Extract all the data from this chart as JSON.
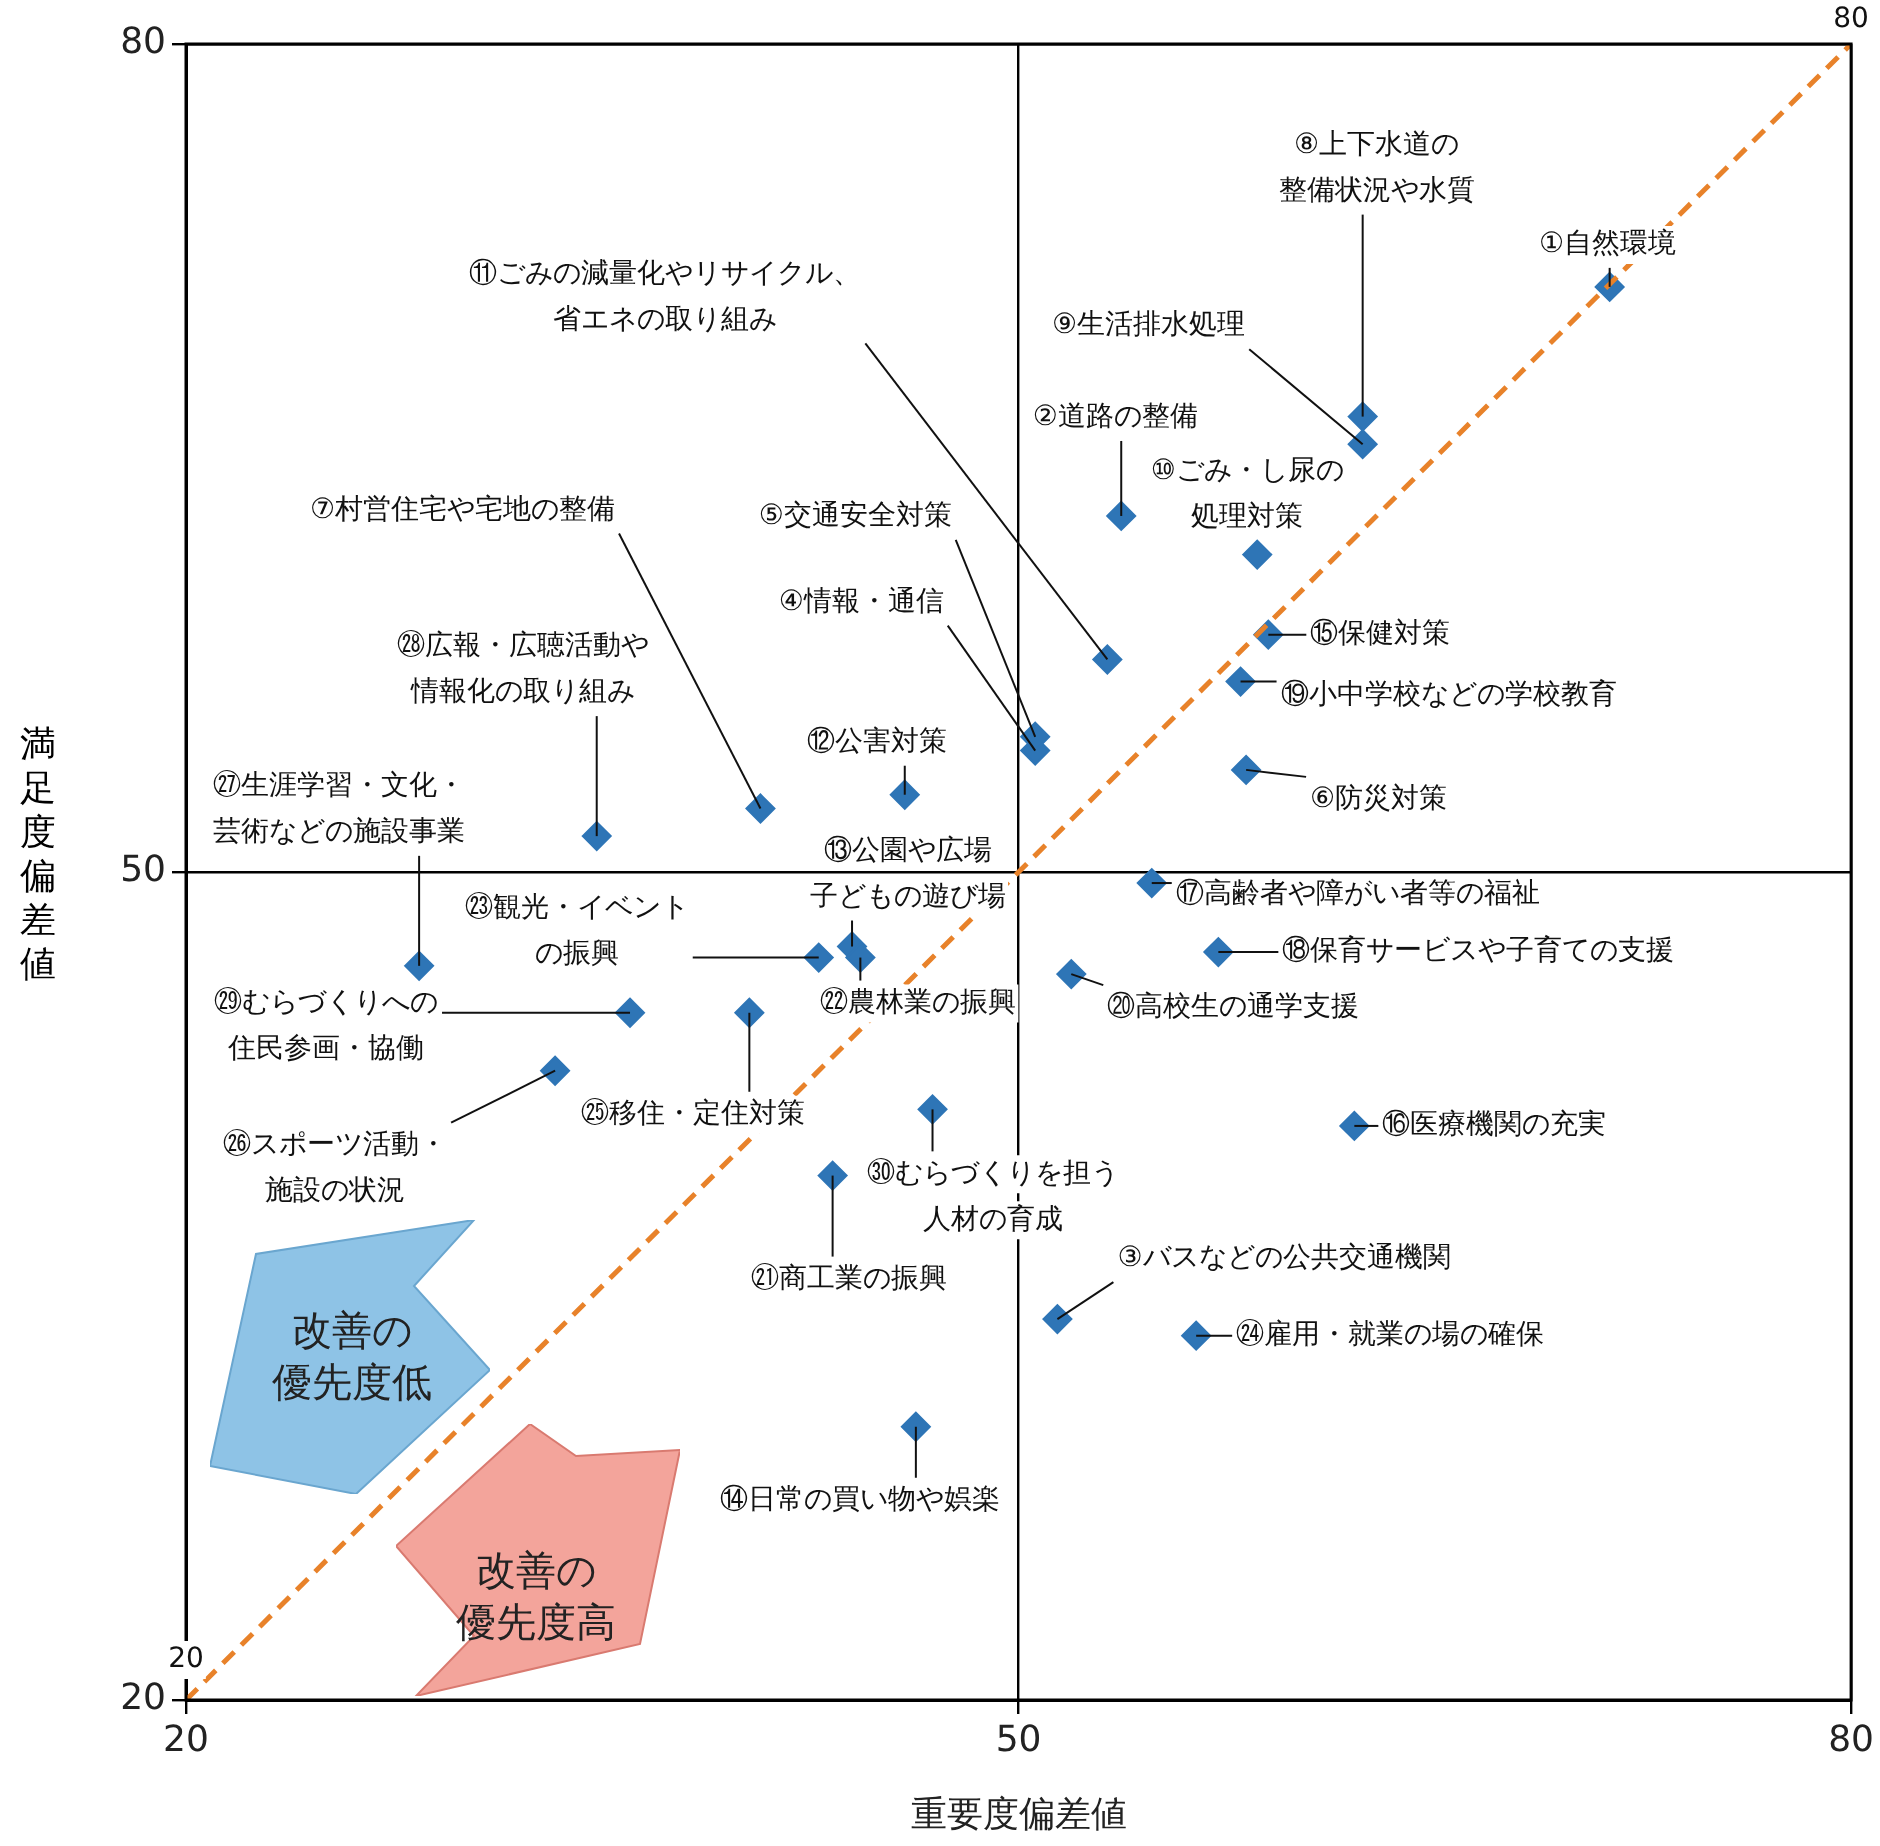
{
  "chart_data": {
    "type": "scatter",
    "xlabel": "重要度偏差値",
    "ylabel": "満足度偏差値",
    "xlim": [
      20,
      80
    ],
    "xticks": [
      20,
      50,
      80
    ],
    "ylim": [
      20,
      80
    ],
    "yticks": [
      20,
      50,
      80
    ],
    "grid": true,
    "legend": false,
    "series": [
      {
        "type": "line",
        "x": [
          20,
          80
        ],
        "values": [
          20,
          80
        ],
        "color": "#e8822a",
        "line_style": "dashed",
        "marker": "none"
      },
      {
        "type": "scatter",
        "x": [
          71.3,
          53.7,
          51.4,
          50.6,
          50.6,
          58.2,
          40.7,
          62.4,
          62.4,
          58.6,
          53.2,
          45.9,
          44.0,
          46.3,
          59.0,
          62.1,
          54.8,
          57.2,
          58.0,
          51.9,
          43.3,
          44.3,
          42.8,
          56.4,
          40.3,
          33.3,
          28.4,
          34.8,
          36.0,
          46.9
        ],
        "values": [
          71.2,
          62.9,
          33.8,
          54.4,
          54.9,
          53.7,
          52.3,
          66.5,
          65.5,
          61.5,
          57.7,
          52.8,
          47.3,
          29.9,
          58.6,
          40.8,
          49.6,
          47.1,
          56.9,
          46.3,
          39.0,
          46.9,
          46.9,
          33.2,
          44.9,
          42.8,
          46.6,
          51.3,
          44.9,
          41.4
        ],
        "color": "#2e75b6",
        "marker": "diamond"
      }
    ],
    "annotations": [
      {
        "text": "①自然環境",
        "x": 71.3,
        "y": 71.2
      },
      {
        "text": "②道路の整備",
        "x": 53.7,
        "y": 62.9
      },
      {
        "text": "③バスなどの公共交通機関",
        "x": 51.4,
        "y": 33.8
      },
      {
        "text": "④情報・通信",
        "x": 50.6,
        "y": 54.4
      },
      {
        "text": "⑤交通安全対策",
        "x": 50.6,
        "y": 54.9
      },
      {
        "text": "⑥防災対策",
        "x": 58.2,
        "y": 53.7
      },
      {
        "text": "⑦村営住宅や宅地の整備",
        "x": 40.7,
        "y": 52.3
      },
      {
        "text": "⑧上下水道の整備状況や水質",
        "x": 62.4,
        "y": 66.5
      },
      {
        "text": "⑨生活排水処理",
        "x": 62.4,
        "y": 65.5
      },
      {
        "text": "⑩ごみ・し尿の処理対策",
        "x": 58.6,
        "y": 61.5
      },
      {
        "text": "⑪ごみの減量化やリサイクル、省エネの取り組み",
        "x": 53.2,
        "y": 57.7
      },
      {
        "text": "⑫公害対策",
        "x": 45.9,
        "y": 52.8
      },
      {
        "text": "⑬公園や広場子どもの遊び場",
        "x": 44.0,
        "y": 47.3
      },
      {
        "text": "⑭日常の買い物や娯楽",
        "x": 46.3,
        "y": 29.9
      },
      {
        "text": "⑮保健対策",
        "x": 59.0,
        "y": 58.6
      },
      {
        "text": "⑯医療機関の充実",
        "x": 62.1,
        "y": 40.8
      },
      {
        "text": "⑰高齢者や障がい者等の福祉",
        "x": 54.8,
        "y": 49.6
      },
      {
        "text": "⑱保育サービスや子育ての支援",
        "x": 57.2,
        "y": 47.1
      },
      {
        "text": "⑲小中学校などの学校教育",
        "x": 58.0,
        "y": 56.9
      },
      {
        "text": "⑳高校生の通学支援",
        "x": 51.9,
        "y": 46.3
      },
      {
        "text": "㉑商工業の振興",
        "x": 43.3,
        "y": 39.0
      },
      {
        "text": "㉒農林業の振興",
        "x": 44.3,
        "y": 46.9
      },
      {
        "text": "㉓観光・イベントの振興",
        "x": 42.8,
        "y": 46.9
      },
      {
        "text": "㉔雇用・就業の場の確保",
        "x": 56.4,
        "y": 33.2
      },
      {
        "text": "㉕移住・定住対策",
        "x": 40.3,
        "y": 44.9
      },
      {
        "text": "㉖スポーツ活動・施設の状況",
        "x": 33.3,
        "y": 42.8
      },
      {
        "text": "㉗生涯学習・文化・芸術などの施設事業",
        "x": 28.4,
        "y": 46.6
      },
      {
        "text": "㉘広報・広聴活動や情報化の取り組み",
        "x": 34.8,
        "y": 51.3
      },
      {
        "text": "㉙むらづくりへの住民参画・協働",
        "x": 36.0,
        "y": 44.9
      },
      {
        "text": "㉚むらづくりを担う人材の育成",
        "x": 46.9,
        "y": 41.4
      },
      {
        "text": "20",
        "x": 20,
        "y": 20
      },
      {
        "text": "80",
        "x": 80,
        "y": 80
      },
      "改善の優先度低",
      "改善の優先度高"
    ]
  }
}
